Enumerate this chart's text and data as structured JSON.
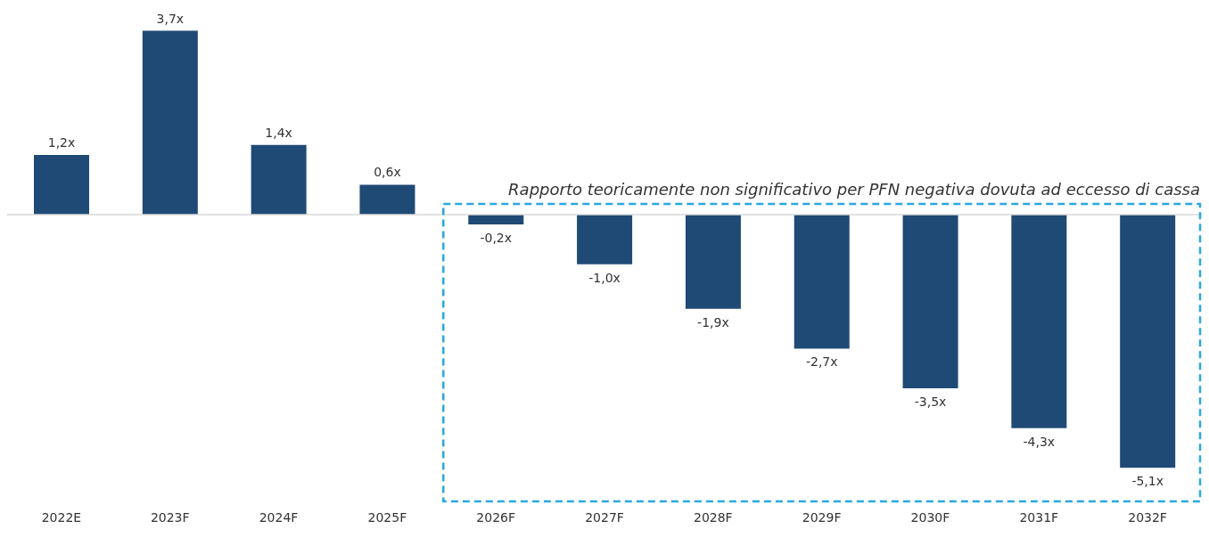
{
  "chart_data": {
    "type": "bar",
    "categories": [
      "2022E",
      "2023F",
      "2024F",
      "2025F",
      "2026F",
      "2027F",
      "2028F",
      "2029F",
      "2030F",
      "2031F",
      "2032F"
    ],
    "values": [
      1.2,
      3.7,
      1.4,
      0.6,
      -0.2,
      -1.0,
      -1.9,
      -2.7,
      -3.5,
      -4.3,
      -5.1
    ],
    "value_labels": [
      "1,2x",
      "3,7x",
      "1,4x",
      "0,6x",
      "-0,2x",
      "-1,0x",
      "-1,9x",
      "-2,7x",
      "-3,5x",
      "-4,3x",
      "-5,1x"
    ],
    "color": "#1f4a75",
    "annotations": [
      "Rapporto teoricamente non significativo per PFN negativa dovuta ad eccesso di cassa"
    ],
    "grid": false,
    "legend": false
  }
}
